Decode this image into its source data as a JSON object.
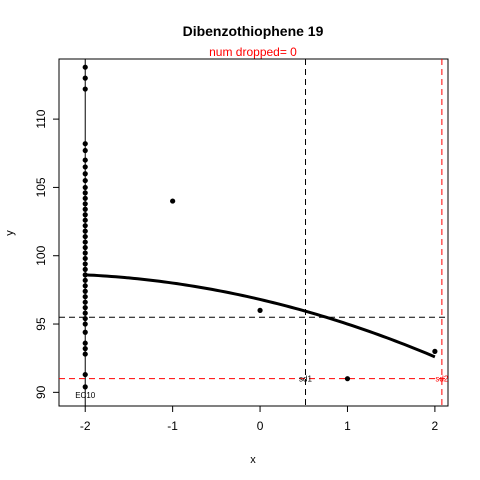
{
  "chart_data": {
    "type": "scatter",
    "title": "Dibenzothiophene 19",
    "subtitle": "num dropped= 0",
    "xlabel": "x",
    "ylabel": "y",
    "xlim": [
      -2.3,
      2.15
    ],
    "ylim": [
      89.0,
      114.4
    ],
    "x_ticks": [
      -2,
      -1,
      0,
      1,
      2
    ],
    "y_ticks": [
      90,
      95,
      100,
      105,
      110
    ],
    "points": [
      {
        "x": -2,
        "y": 113.8
      },
      {
        "x": -2,
        "y": 113.0
      },
      {
        "x": -2,
        "y": 112.2
      },
      {
        "x": -2,
        "y": 108.2
      },
      {
        "x": -2,
        "y": 107.7
      },
      {
        "x": -2,
        "y": 107.0
      },
      {
        "x": -2,
        "y": 106.5
      },
      {
        "x": -2,
        "y": 106.0
      },
      {
        "x": -2,
        "y": 105.5
      },
      {
        "x": -2,
        "y": 105.0
      },
      {
        "x": -2,
        "y": 104.6
      },
      {
        "x": -2,
        "y": 104.2
      },
      {
        "x": -2,
        "y": 103.8
      },
      {
        "x": -2,
        "y": 103.4
      },
      {
        "x": -2,
        "y": 103.0
      },
      {
        "x": -2,
        "y": 102.6
      },
      {
        "x": -2,
        "y": 102.2
      },
      {
        "x": -2,
        "y": 101.8
      },
      {
        "x": -2,
        "y": 101.4
      },
      {
        "x": -2,
        "y": 101.0
      },
      {
        "x": -2,
        "y": 100.6
      },
      {
        "x": -2,
        "y": 100.2
      },
      {
        "x": -2,
        "y": 99.8
      },
      {
        "x": -2,
        "y": 99.4
      },
      {
        "x": -2,
        "y": 99.0
      },
      {
        "x": -2,
        "y": 98.6
      },
      {
        "x": -2,
        "y": 98.2
      },
      {
        "x": -2,
        "y": 97.8
      },
      {
        "x": -2,
        "y": 97.4
      },
      {
        "x": -2,
        "y": 97.0
      },
      {
        "x": -2,
        "y": 96.6
      },
      {
        "x": -2,
        "y": 96.2
      },
      {
        "x": -2,
        "y": 95.8
      },
      {
        "x": -2,
        "y": 95.4
      },
      {
        "x": -2,
        "y": 95.0
      },
      {
        "x": -2,
        "y": 94.4
      },
      {
        "x": -2,
        "y": 93.6
      },
      {
        "x": -2,
        "y": 93.2
      },
      {
        "x": -2,
        "y": 92.8
      },
      {
        "x": -2,
        "y": 91.3
      },
      {
        "x": -2,
        "y": 90.4
      },
      {
        "x": -1,
        "y": 104.0
      },
      {
        "x": 0,
        "y": 96.0
      },
      {
        "x": 1,
        "y": 91.0
      },
      {
        "x": 2,
        "y": 93.0
      }
    ],
    "fit_curve": {
      "a": 96.8,
      "b": -1.5,
      "c": -0.3,
      "x_range": [
        -2,
        2
      ]
    },
    "reference_lines": [
      {
        "orientation": "vertical",
        "x": -2,
        "style": "solid",
        "color": "#000000",
        "label": "EC10"
      },
      {
        "orientation": "vertical",
        "x": 0.52,
        "style": "dashed",
        "color": "#000000",
        "label": "sd1"
      },
      {
        "orientation": "vertical",
        "x": 2.08,
        "style": "dashed",
        "color": "#ff0000",
        "label": "sd2"
      },
      {
        "orientation": "horizontal",
        "y": 95.5,
        "style": "dashed",
        "color": "#000000"
      },
      {
        "orientation": "horizontal",
        "y": 91.0,
        "style": "dashed",
        "color": "#ff0000"
      }
    ],
    "grid": false,
    "legend": "none"
  }
}
